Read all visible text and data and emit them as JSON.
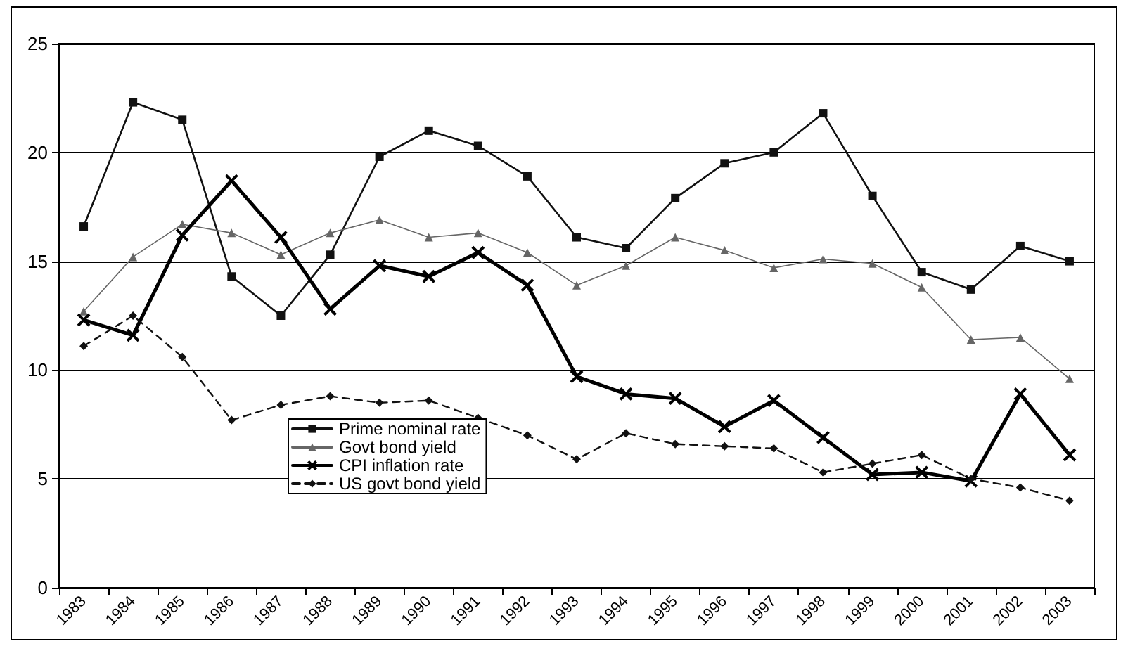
{
  "chart_data": {
    "type": "line",
    "categories": [
      "1983",
      "1984",
      "1985",
      "1986",
      "1987",
      "1988",
      "1989",
      "1990",
      "1991",
      "1992",
      "1993",
      "1994",
      "1995",
      "1996",
      "1997",
      "1998",
      "1999",
      "2000",
      "2001",
      "2002",
      "2003"
    ],
    "ylim": [
      0,
      25
    ],
    "yticks": [
      0,
      5,
      10,
      15,
      20,
      25
    ],
    "grid": "y",
    "legend": "bottom",
    "line_style": "solid",
    "series": [
      {
        "name": "Prime nominal rate",
        "color": "#111111",
        "marker": "square",
        "values": [
          16.6,
          22.3,
          21.5,
          14.3,
          12.5,
          15.3,
          19.8,
          21.0,
          20.3,
          18.9,
          16.1,
          15.6,
          17.9,
          19.5,
          20.0,
          21.8,
          18.0,
          14.5,
          13.7,
          15.7,
          15.0
        ]
      },
      {
        "name": "Govt bond yield",
        "color": "#666666",
        "marker": "triangle",
        "values": [
          12.7,
          15.2,
          16.7,
          16.3,
          15.3,
          16.3,
          16.9,
          16.1,
          16.3,
          15.4,
          13.9,
          14.8,
          16.1,
          15.5,
          14.7,
          15.1,
          14.9,
          13.8,
          11.4,
          11.5,
          9.6
        ]
      },
      {
        "name": "CPI inflation rate",
        "color": "#000000",
        "marker": "cross",
        "values": [
          12.3,
          11.6,
          16.2,
          18.7,
          16.1,
          12.8,
          14.8,
          14.3,
          15.4,
          13.9,
          9.7,
          8.9,
          8.7,
          7.4,
          8.6,
          6.9,
          5.2,
          5.3,
          4.9,
          8.9,
          6.1
        ]
      },
      {
        "name": "US govt bond yield",
        "color": "#111111",
        "marker": "diamond",
        "line_style": "dashed",
        "values": [
          11.1,
          12.5,
          10.6,
          7.7,
          8.4,
          8.8,
          8.5,
          8.6,
          7.8,
          7.0,
          5.9,
          7.1,
          6.6,
          6.5,
          6.4,
          5.3,
          5.7,
          6.1,
          5.0,
          4.6,
          4.0
        ]
      }
    ]
  }
}
